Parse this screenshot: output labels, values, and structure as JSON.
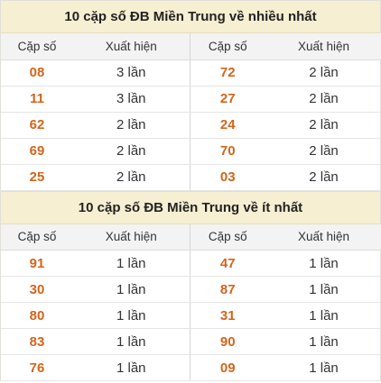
{
  "sections": [
    {
      "title": "10 cặp số ĐB Miền Trung về nhiều nhất",
      "headers": [
        "Cặp số",
        "Xuất hiện",
        "Cặp số",
        "Xuất hiện"
      ],
      "rows": [
        [
          "08",
          "3 lần",
          "72",
          "2 lần"
        ],
        [
          "11",
          "3 lần",
          "27",
          "2 lần"
        ],
        [
          "62",
          "2 lần",
          "24",
          "2 lần"
        ],
        [
          "69",
          "2 lần",
          "70",
          "2 lần"
        ],
        [
          "25",
          "2 lần",
          "03",
          "2 lần"
        ]
      ]
    },
    {
      "title": "10 cặp số ĐB Miền Trung về ít nhất",
      "headers": [
        "Cặp số",
        "Xuất hiện",
        "Cặp số",
        "Xuất hiện"
      ],
      "rows": [
        [
          "91",
          "1 lần",
          "47",
          "1 lần"
        ],
        [
          "30",
          "1 lần",
          "87",
          "1 lần"
        ],
        [
          "80",
          "1 lần",
          "31",
          "1 lần"
        ],
        [
          "83",
          "1 lần",
          "90",
          "1 lần"
        ],
        [
          "76",
          "1 lần",
          "09",
          "1 lần"
        ]
      ]
    }
  ],
  "colors": {
    "title_bg": "#f6efd2",
    "header_bg": "#f3f3f3",
    "number": "#d2651b"
  }
}
